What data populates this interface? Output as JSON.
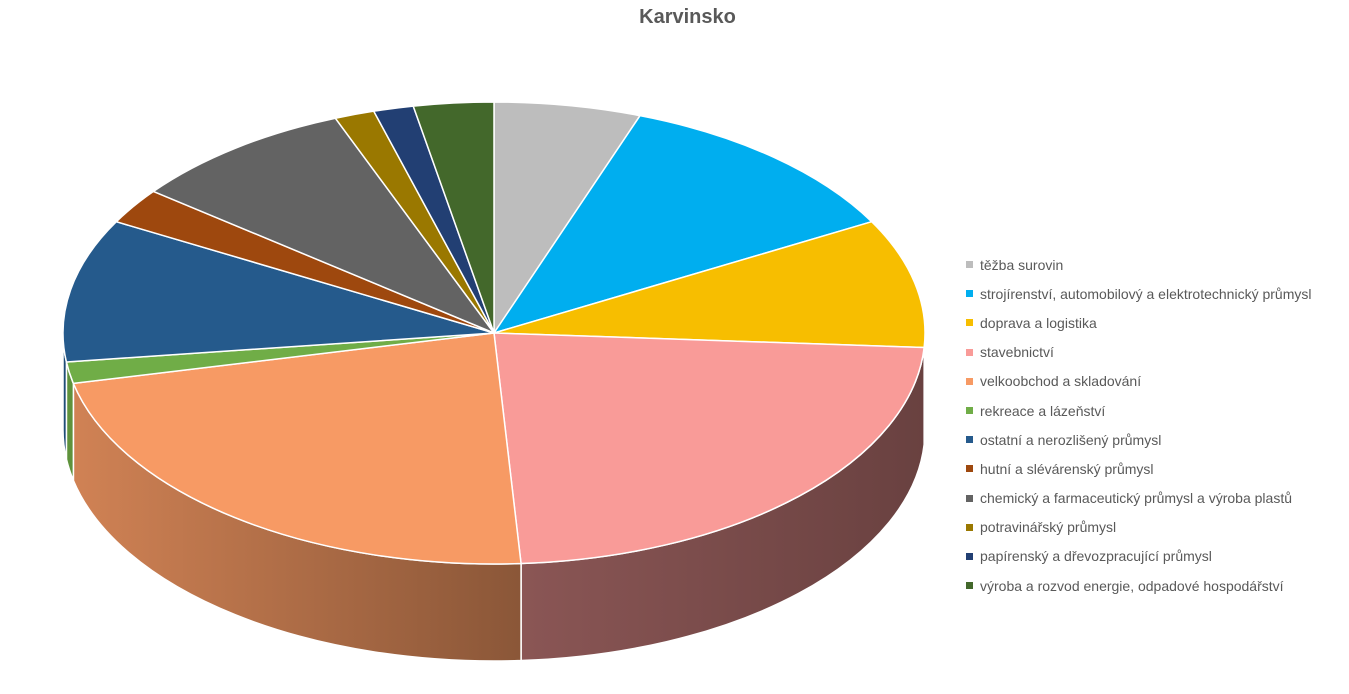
{
  "chart_data": {
    "type": "pie",
    "title": "Karvinsko",
    "legend_position": "right",
    "three_d": true,
    "slices": [
      {
        "label": "těžba surovin",
        "value": 5.5,
        "color": "#BDBDBD"
      },
      {
        "label": "strojírenství, automobilový a elektrotechnický průmysl",
        "value": 11.5,
        "color": "#00AEEF"
      },
      {
        "label": "doprava a logistika",
        "value": 9.0,
        "color": "#F7BE00"
      },
      {
        "label": "stavebnictví",
        "value": 23.0,
        "color": "#F99B98"
      },
      {
        "label": "velkoobchod a skladování",
        "value": 22.5,
        "color": "#F79A64"
      },
      {
        "label": "rekreace a lázeňství",
        "value": 1.5,
        "color": "#70AD47"
      },
      {
        "label": "ostatní a nerozlišený průmysl",
        "value": 10.0,
        "color": "#255A8C"
      },
      {
        "label": "hutní a slévárenský průmysl",
        "value": 2.5,
        "color": "#9E480E"
      },
      {
        "label": "chemický a farmaceutický průmysl a výroba plastů",
        "value": 8.5,
        "color": "#636363"
      },
      {
        "label": "potravinářský průmysl",
        "value": 1.5,
        "color": "#9A7800"
      },
      {
        "label": "papírenský a dřevozpracující průmysl",
        "value": 1.5,
        "color": "#223F73"
      },
      {
        "label": "výroba a rozvod energie, odpadové hospodářství",
        "value": 3.0,
        "color": "#43682B"
      }
    ]
  }
}
